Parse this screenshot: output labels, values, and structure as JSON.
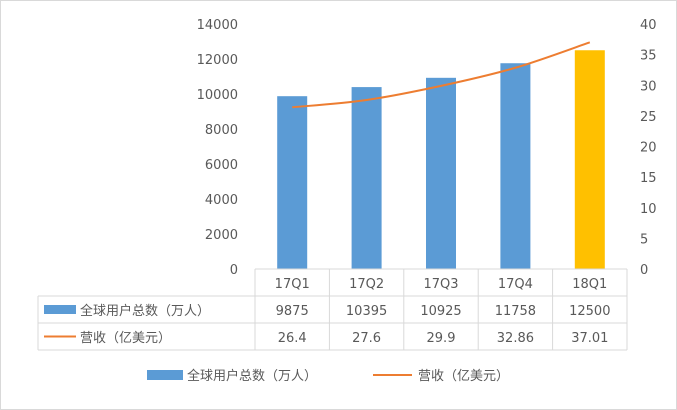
{
  "chart_data": {
    "type": "bar",
    "categories": [
      "17Q1",
      "17Q2",
      "17Q3",
      "17Q4",
      "18Q1"
    ],
    "y_left": {
      "min": 0,
      "max": 14000,
      "ticks": [
        "0",
        "2000",
        "4000",
        "6000",
        "8000",
        "10000",
        "12000",
        "14000"
      ]
    },
    "y_right": {
      "min": 0,
      "max": 40,
      "ticks": [
        "0",
        "5",
        "10",
        "15",
        "20",
        "25",
        "30",
        "35",
        "40"
      ]
    },
    "series": [
      {
        "name": "全球用户总数（万人）",
        "type": "bar",
        "axis": "left",
        "values": [
          9875,
          10395,
          10925,
          11758,
          12500
        ],
        "labels": [
          "9875",
          "10395",
          "10925",
          "11758",
          "12500"
        ],
        "color": "#5B9BD5",
        "highlight_color": "#FFC000",
        "highlight_index": 4
      },
      {
        "name": "营收（亿美元）",
        "type": "line",
        "axis": "right",
        "values": [
          26.4,
          27.6,
          29.9,
          32.86,
          37.01
        ],
        "labels": [
          "26.4",
          "27.6",
          "29.9",
          "32.86",
          "37.01"
        ],
        "color": "#ED7D31"
      }
    ],
    "grid": false,
    "legend_position": "bottom"
  }
}
